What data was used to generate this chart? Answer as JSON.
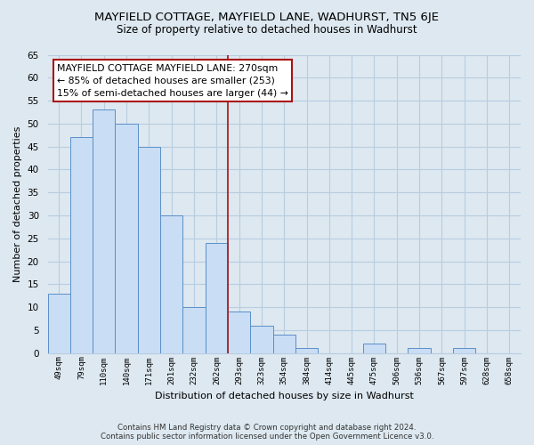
{
  "title": "MAYFIELD COTTAGE, MAYFIELD LANE, WADHURST, TN5 6JE",
  "subtitle": "Size of property relative to detached houses in Wadhurst",
  "xlabel": "Distribution of detached houses by size in Wadhurst",
  "ylabel": "Number of detached properties",
  "bin_labels": [
    "49sqm",
    "79sqm",
    "110sqm",
    "140sqm",
    "171sqm",
    "201sqm",
    "232sqm",
    "262sqm",
    "293sqm",
    "323sqm",
    "354sqm",
    "384sqm",
    "414sqm",
    "445sqm",
    "475sqm",
    "506sqm",
    "536sqm",
    "567sqm",
    "597sqm",
    "628sqm",
    "658sqm"
  ],
  "bar_values": [
    13,
    47,
    53,
    50,
    45,
    30,
    10,
    24,
    9,
    6,
    4,
    1,
    0,
    0,
    2,
    0,
    1,
    0,
    1,
    0,
    0
  ],
  "bar_color": "#c9ddf5",
  "bar_edge_color": "#5b8fc9",
  "grid_color": "#b8cde0",
  "vline_color": "#aa1111",
  "annotation_line1": "MAYFIELD COTTAGE MAYFIELD LANE: 270sqm",
  "annotation_line2": "← 85% of detached houses are smaller (253)",
  "annotation_line3": "15% of semi-detached houses are larger (44) →",
  "annotation_box_color": "#ffffff",
  "annotation_box_edge": "#aa1111",
  "ylim": [
    0,
    65
  ],
  "yticks": [
    0,
    5,
    10,
    15,
    20,
    25,
    30,
    35,
    40,
    45,
    50,
    55,
    60,
    65
  ],
  "footer_line1": "Contains HM Land Registry data © Crown copyright and database right 2024.",
  "footer_line2": "Contains public sector information licensed under the Open Government Licence v3.0.",
  "bg_color": "#dde8f0",
  "plot_bg_color": "#dde8f0"
}
